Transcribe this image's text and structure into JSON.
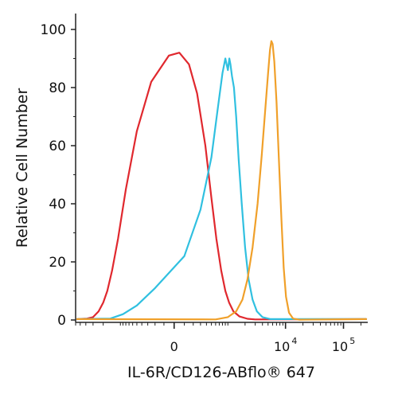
{
  "chart_data": {
    "type": "line",
    "title": "",
    "xlabel": "IL-6R/CD126-ABflo® 647",
    "ylabel": "Relative Cell Number",
    "x_scale": "biexponential",
    "x_tick_labels": [
      {
        "label": "0",
        "exp": ""
      },
      {
        "label": "10",
        "exp": "4"
      },
      {
        "label": "10",
        "exp": "5"
      }
    ],
    "ylim": [
      0,
      100
    ],
    "y_ticks": [
      0,
      20,
      40,
      60,
      80,
      100
    ],
    "grid": false,
    "legend": "none",
    "series": [
      {
        "color": "#e0282e",
        "points": [
          [
            -3800,
            0.5
          ],
          [
            -3000,
            1
          ],
          [
            -2400,
            3
          ],
          [
            -2000,
            6
          ],
          [
            -1700,
            10
          ],
          [
            -1400,
            17
          ],
          [
            -1100,
            28
          ],
          [
            -800,
            45
          ],
          [
            -500,
            65
          ],
          [
            -250,
            82
          ],
          [
            -50,
            91
          ],
          [
            50,
            92
          ],
          [
            150,
            88
          ],
          [
            250,
            78
          ],
          [
            380,
            60
          ],
          [
            500,
            42
          ],
          [
            620,
            28
          ],
          [
            760,
            17
          ],
          [
            900,
            10
          ],
          [
            1050,
            6
          ],
          [
            1250,
            3
          ],
          [
            1600,
            1.2
          ],
          [
            2200,
            0.4
          ],
          [
            3000,
            0.2
          ]
        ]
      },
      {
        "color": "#30c0e0",
        "points": [
          [
            -1500,
            0.5
          ],
          [
            -900,
            2
          ],
          [
            -500,
            5
          ],
          [
            -200,
            11
          ],
          [
            100,
            22
          ],
          [
            300,
            38
          ],
          [
            500,
            56
          ],
          [
            650,
            72
          ],
          [
            800,
            85
          ],
          [
            900,
            90
          ],
          [
            950,
            88
          ],
          [
            1000,
            86
          ],
          [
            1060,
            90
          ],
          [
            1110,
            88
          ],
          [
            1180,
            84
          ],
          [
            1280,
            80
          ],
          [
            1400,
            70
          ],
          [
            1550,
            55
          ],
          [
            1750,
            40
          ],
          [
            2000,
            25
          ],
          [
            2300,
            14
          ],
          [
            2700,
            7
          ],
          [
            3200,
            3
          ],
          [
            4000,
            1
          ],
          [
            5500,
            0.3
          ]
        ]
      },
      {
        "color": "#f0a02a",
        "points": [
          [
            600,
            0.2
          ],
          [
            1000,
            1
          ],
          [
            1400,
            3
          ],
          [
            1800,
            7
          ],
          [
            2200,
            14
          ],
          [
            2700,
            25
          ],
          [
            3300,
            40
          ],
          [
            3900,
            57
          ],
          [
            4500,
            73
          ],
          [
            5000,
            85
          ],
          [
            5400,
            93
          ],
          [
            5700,
            96
          ],
          [
            6000,
            95
          ],
          [
            6400,
            89
          ],
          [
            7000,
            75
          ],
          [
            7700,
            55
          ],
          [
            8500,
            35
          ],
          [
            9300,
            18
          ],
          [
            10200,
            8
          ],
          [
            11500,
            2.5
          ],
          [
            13500,
            0.5
          ],
          [
            17000,
            0.1
          ]
        ]
      }
    ]
  }
}
